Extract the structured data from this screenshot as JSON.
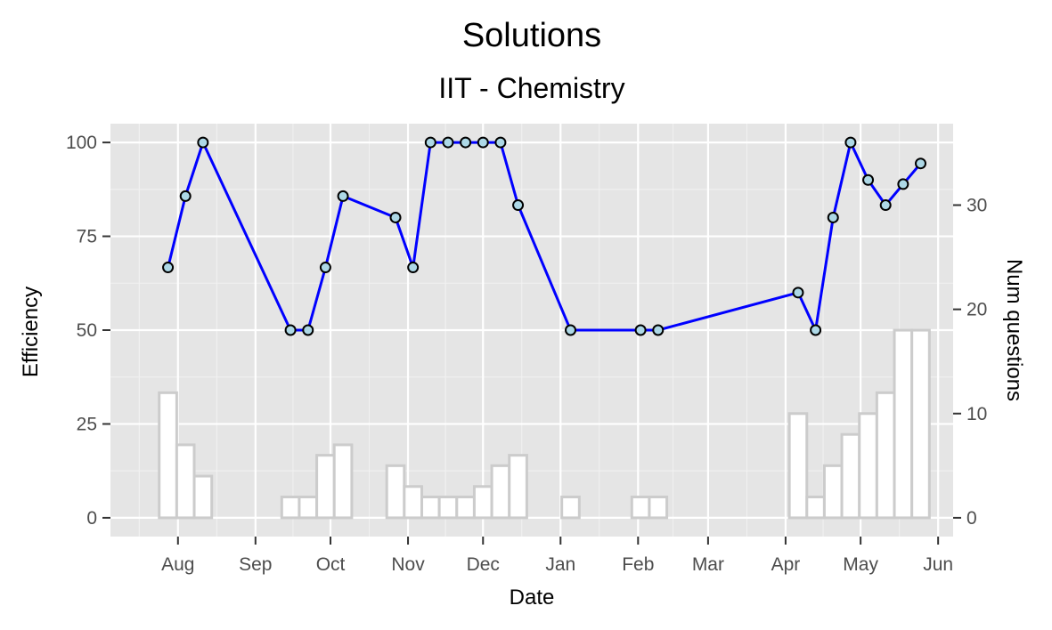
{
  "chart_data": {
    "type": "line",
    "title": "Solutions",
    "subtitle": "IIT - Chemistry",
    "xlabel": "Date",
    "ylabel": "Efficiency",
    "y2label": "Num questions",
    "x_ticks": [
      "Aug",
      "Sep",
      "Oct",
      "Nov",
      "Dec",
      "Jan",
      "Feb",
      "Mar",
      "Apr",
      "May",
      "Jun"
    ],
    "x_tick_dates": [
      "2017-08-01",
      "2017-09-01",
      "2017-10-01",
      "2017-11-01",
      "2017-12-01",
      "2018-01-01",
      "2018-02-01",
      "2018-03-01",
      "2018-04-01",
      "2018-05-01",
      "2018-06-01"
    ],
    "x_range": [
      "2017-07-05",
      "2018-06-07"
    ],
    "ylim": [
      -5,
      105
    ],
    "y_ticks": [
      0,
      25,
      50,
      75,
      100
    ],
    "y2_ticks": [
      0,
      10,
      20,
      30
    ],
    "y2_scale": 2.777,
    "grid": true,
    "series": [
      {
        "name": "",
        "kind": "line",
        "color": "#0000ff",
        "point_fill": "#add8e6",
        "x": [
          "2017-07-28",
          "2017-08-04",
          "2017-08-11",
          "2017-09-15",
          "2017-09-22",
          "2017-09-29",
          "2017-10-06",
          "2017-10-27",
          "2017-11-03",
          "2017-11-10",
          "2017-11-17",
          "2017-11-24",
          "2017-12-01",
          "2017-12-08",
          "2017-12-15",
          "2018-01-05",
          "2018-02-02",
          "2018-02-09",
          "2018-04-06",
          "2018-04-13",
          "2018-04-20",
          "2018-04-27",
          "2018-05-04",
          "2018-05-11",
          "2018-05-18",
          "2018-05-25"
        ],
        "values": [
          66.7,
          85.7,
          100,
          50,
          50,
          66.7,
          85.7,
          80,
          66.7,
          100,
          100,
          100,
          100,
          100,
          83.3,
          50,
          50,
          50,
          60,
          50,
          80,
          100,
          90,
          83.3,
          88.9,
          94.4
        ]
      },
      {
        "name": "",
        "kind": "bar",
        "axis": "right",
        "fill": "#ffffff",
        "stroke": "#cccccc",
        "x": [
          "2017-07-28",
          "2017-08-04",
          "2017-08-11",
          "2017-09-15",
          "2017-09-22",
          "2017-09-29",
          "2017-10-06",
          "2017-10-27",
          "2017-11-03",
          "2017-11-10",
          "2017-11-17",
          "2017-11-24",
          "2017-12-01",
          "2017-12-08",
          "2017-12-15",
          "2018-01-05",
          "2018-02-02",
          "2018-02-09",
          "2018-04-06",
          "2018-04-13",
          "2018-04-20",
          "2018-04-27",
          "2018-05-04",
          "2018-05-11",
          "2018-05-18",
          "2018-05-25"
        ],
        "values": [
          12,
          7,
          4,
          2,
          2,
          6,
          7,
          5,
          3,
          2,
          2,
          2,
          3,
          5,
          6,
          2,
          2,
          2,
          10,
          2,
          5,
          8,
          10,
          12,
          18,
          18
        ]
      }
    ]
  }
}
